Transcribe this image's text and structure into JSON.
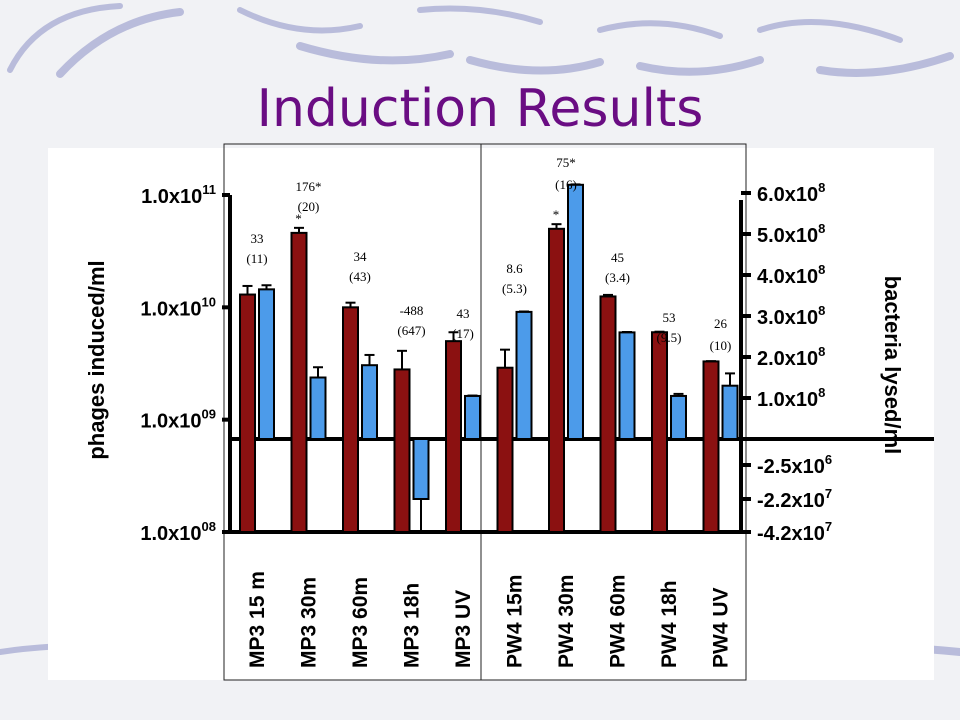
{
  "slide": {
    "title": "Induction Results",
    "title_color": "#6a0d83",
    "background_color": "#f1f2f5",
    "swoosh_color": "#8a8fc4"
  },
  "chart_data": {
    "type": "bar",
    "categories": [
      "MP3 15 m",
      "MP3 30m",
      "MP3 60m",
      "MP3 18h",
      "MP3 UV",
      "PW4 15m",
      "PW4 30m",
      "PW4 60m",
      "PW4 18h",
      "PW4 UV"
    ],
    "annotations": [
      {
        "top": "33",
        "bottom": "(11)",
        "star": ""
      },
      {
        "top": "176*",
        "bottom": "(20)",
        "star": "*"
      },
      {
        "top": "34",
        "bottom": "(43)",
        "star": ""
      },
      {
        "top": "-488",
        "bottom": "(647)",
        "star": ""
      },
      {
        "top": "43",
        "bottom": "(17)",
        "star": ""
      },
      {
        "top": "8.6",
        "bottom": "(5.3)",
        "star": ""
      },
      {
        "top": "75*",
        "bottom": "(16)",
        "star": "*"
      },
      {
        "top": "45",
        "bottom": "(3.4)",
        "star": ""
      },
      {
        "top": "53",
        "bottom": "(9.5)",
        "star": ""
      },
      {
        "top": "26",
        "bottom": "(10)",
        "star": ""
      }
    ],
    "left_axis": {
      "label": "phages induced/ml",
      "scale": "log",
      "range": [
        100000000.0,
        100000000000.0
      ],
      "ticks": [
        {
          "value": 100000000000.0,
          "base": "1.0x10",
          "exp": "11"
        },
        {
          "value": 10000000000.0,
          "base": "1.0x10",
          "exp": "10"
        },
        {
          "value": 1000000000.0,
          "base": "1.0x10",
          "exp": "09"
        },
        {
          "value": 100000000.0,
          "base": "1.0x10",
          "exp": "08"
        }
      ]
    },
    "right_axis": {
      "label": "bacteria lysed/ml",
      "scale": "linear",
      "range": [
        0,
        600000000.0
      ],
      "ticks": [
        {
          "value": 600000000.0,
          "base": "6.0x10",
          "exp": "8"
        },
        {
          "value": 500000000.0,
          "base": "5.0x10",
          "exp": "8"
        },
        {
          "value": 400000000.0,
          "base": "4.0x10",
          "exp": "8"
        },
        {
          "value": 300000000.0,
          "base": "3.0x10",
          "exp": "8"
        },
        {
          "value": 200000000.0,
          "base": "2.0x10",
          "exp": "8"
        },
        {
          "value": 100000000.0,
          "base": "1.0x10",
          "exp": "8"
        }
      ],
      "negative_ticks": [
        {
          "value": -2500000.0,
          "base": "-2.5x10",
          "exp": "6"
        },
        {
          "value": -22000000.0,
          "base": "-2.2x10",
          "exp": "7"
        },
        {
          "value": -42000000.0,
          "base": "-4.2x10",
          "exp": "7"
        }
      ]
    },
    "series": [
      {
        "name": "phages induced/ml",
        "axis": "left",
        "color": "#8b1111",
        "values": [
          13000000000.0,
          46000000000.0,
          10000000000.0,
          2800000000.0,
          5000000000.0,
          2900000000.0,
          50000000000.0,
          12500000000.0,
          6000000000.0,
          3300000000.0
        ],
        "errors": [
          2500000000.0,
          5000000000.0,
          1000000000.0,
          1300000000.0,
          1000000000.0,
          1300000000.0,
          5000000000.0,
          400000000.0,
          70000000.0,
          20000000.0
        ]
      },
      {
        "name": "bacteria lysed/ml",
        "axis": "right",
        "color": "#4c9bea",
        "values": [
          365000000.0,
          150000000.0,
          180000000.0,
          -22000000.0,
          105000000.0,
          310000000.0,
          620000000.0,
          260000000.0,
          105000000.0,
          130000000.0
        ],
        "errors": [
          10000000.0,
          25000000.0,
          25000000.0,
          20000000.0,
          1000000.0,
          1000000.0,
          1000000.0,
          1000000.0,
          5000000.0,
          30000000.0
        ]
      }
    ],
    "grid": false,
    "legend": "none"
  }
}
